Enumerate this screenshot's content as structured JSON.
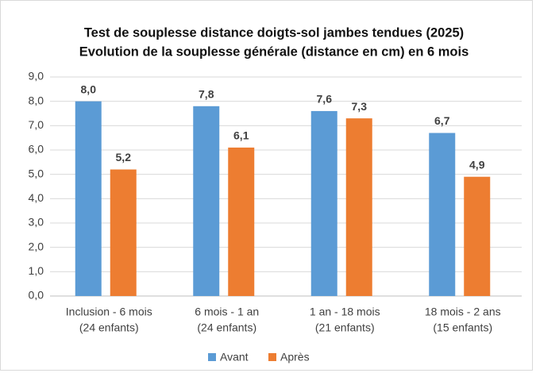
{
  "chart_data": {
    "type": "bar",
    "title": "Test de souplesse distance doigts-sol jambes tendues (2025)",
    "subtitle": "Evolution de la souplesse générale (distance en cm) en 6 mois",
    "categories": [
      [
        "Inclusion - 6 mois",
        "(24 enfants)"
      ],
      [
        "6 mois - 1 an",
        "(24 enfants)"
      ],
      [
        "1 an - 18 mois",
        "(21 enfants)"
      ],
      [
        "18 mois - 2 ans",
        "(15 enfants)"
      ]
    ],
    "series": [
      {
        "name": "Avant",
        "color": "#5b9bd5",
        "label_color": "#2e75b6",
        "values": [
          8.0,
          7.8,
          7.6,
          6.7
        ],
        "value_labels": [
          "8,0",
          "7,8",
          "7,6",
          "6,7"
        ]
      },
      {
        "name": "Après",
        "color": "#ed7d31",
        "label_color": "#c00000",
        "values": [
          5.2,
          6.1,
          7.3,
          4.9
        ],
        "value_labels": [
          "5,2",
          "6,1",
          "7,3",
          "4,9"
        ]
      }
    ],
    "ylim": [
      0,
      9
    ],
    "yticks": [
      {
        "value": 0,
        "label": "0,0"
      },
      {
        "value": 1,
        "label": "1,0"
      },
      {
        "value": 2,
        "label": "2,0"
      },
      {
        "value": 3,
        "label": "3,0"
      },
      {
        "value": 4,
        "label": "4,0"
      },
      {
        "value": 5,
        "label": "5,0"
      },
      {
        "value": 6,
        "label": "6,0"
      },
      {
        "value": 7,
        "label": "7,0"
      },
      {
        "value": 8,
        "label": "8,0"
      },
      {
        "value": 9,
        "label": "9,0"
      }
    ],
    "grid": true,
    "legend": "bottom"
  }
}
